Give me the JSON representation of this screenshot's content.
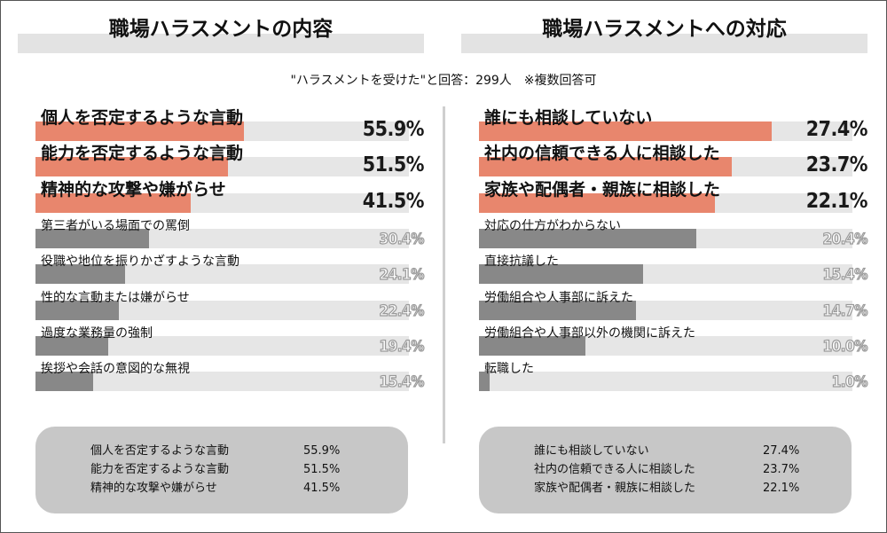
{
  "header": {
    "left_title": "職場ハラスメントの内容",
    "right_title": "職場ハラスメントへの対応",
    "subtitle": "\"ハラスメントを受けた\"と回答：299人　※複数回答可"
  },
  "chart_data": [
    {
      "type": "bar",
      "orientation": "horizontal",
      "title": "職場ハラスメントの内容",
      "categories": [
        "個人を否定するような言動",
        "能力を否定するような言動",
        "精神的な攻撃や嫌がらせ",
        "第三者がいる場面での罵倒",
        "役職や地位を振りかざすような言動",
        "性的な言動または嫌がらせ",
        "過度な業務量の強制",
        "挨拶や会話の意図的な無視"
      ],
      "values": [
        55.9,
        51.5,
        41.5,
        30.4,
        24.1,
        22.4,
        19.4,
        15.4
      ],
      "value_labels": [
        "55.9%",
        "51.5%",
        "41.5%",
        "30.4%",
        "24.1%",
        "22.4%",
        "19.4%",
        "15.4%"
      ],
      "xlim": [
        0,
        100
      ],
      "highlight_count": 3,
      "colors": {
        "highlight": "#e8866d",
        "normal": "#888888",
        "track": "#e6e6e6"
      }
    },
    {
      "type": "bar",
      "orientation": "horizontal",
      "title": "職場ハラスメントへの対応",
      "categories": [
        "誰にも相談していない",
        "社内の信頼できる人に相談した",
        "家族や配偶者・親族に相談した",
        "対応の仕方がわからない",
        "直接抗議した",
        "労働組合や人事部に訴えた",
        "労働組合や人事部以外の機関に訴えた",
        "転職した"
      ],
      "values": [
        27.4,
        23.7,
        22.1,
        20.4,
        15.4,
        14.7,
        10.0,
        1.0
      ],
      "value_labels": [
        "27.4%",
        "23.7%",
        "22.1%",
        "20.4%",
        "15.4%",
        "14.7%",
        "10.0%",
        "1.0%"
      ],
      "xlim": [
        0,
        35
      ],
      "highlight_count": 3,
      "colors": {
        "highlight": "#e8866d",
        "normal": "#888888",
        "track": "#e6e6e6"
      }
    }
  ],
  "summary_left": [
    {
      "name": "個人を否定するような言動",
      "value": "55.9%"
    },
    {
      "name": "能力を否定するような言動",
      "value": "51.5%"
    },
    {
      "name": "精神的な攻撃や嫌がらせ",
      "value": "41.5%"
    }
  ],
  "summary_right": [
    {
      "name": "誰にも相談していない",
      "value": "27.4%"
    },
    {
      "name": "社内の信頼できる人に相談した",
      "value": "23.7%"
    },
    {
      "name": "家族や配偶者・親族に相談した",
      "value": "22.1%"
    }
  ]
}
